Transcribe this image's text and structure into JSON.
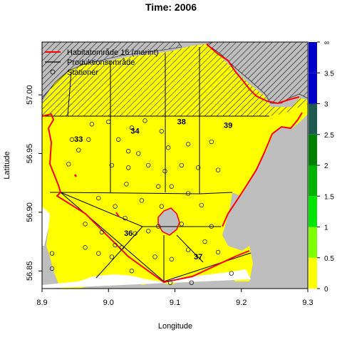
{
  "chart_data": {
    "type": "map",
    "title": "Time: 2006",
    "xlabel": "Longitude",
    "ylabel": "Latitude",
    "xlim": [
      8.9,
      9.3
    ],
    "ylim": [
      56.835,
      57.045
    ],
    "x_ticks": [
      "8.9",
      "9.0",
      "9.1",
      "9.2",
      "9.3"
    ],
    "y_ticks": [
      "56.85",
      "56.90",
      "56.95",
      "57.00"
    ],
    "legend": {
      "position": "top-left",
      "items": [
        {
          "label": "Habitatområde 16 (marint)",
          "color": "#ff0000",
          "kind": "line"
        },
        {
          "label": "Produktionsområde",
          "color": "#000000",
          "kind": "line"
        },
        {
          "label": "Stationer",
          "color": "#000000",
          "kind": "circle"
        }
      ]
    },
    "color_scale": {
      "ticks": [
        "0",
        "0.5",
        "1",
        "1.5",
        "2",
        "2.5",
        "3",
        "3.5",
        "∞"
      ],
      "colors": [
        "#ffff00",
        "#80ff00",
        "#00e600",
        "#00b300",
        "#008000",
        "#1e5a50",
        "#0000c8",
        "#0000c8"
      ]
    },
    "production_areas": [
      {
        "label": "33",
        "x": 8.955,
        "y": 56.96
      },
      {
        "label": "34",
        "x": 9.04,
        "y": 56.967
      },
      {
        "label": "38",
        "x": 9.11,
        "y": 56.975
      },
      {
        "label": "39",
        "x": 9.18,
        "y": 56.972
      },
      {
        "label": "36",
        "x": 9.03,
        "y": 56.88
      },
      {
        "label": "37",
        "x": 9.135,
        "y": 56.86
      }
    ],
    "stations": [
      [
        8.975,
        56.975
      ],
      [
        8.945,
        56.962
      ],
      [
        8.97,
        56.962
      ],
      [
        8.955,
        56.953
      ],
      [
        8.94,
        56.941
      ],
      [
        9.0,
        56.977
      ],
      [
        9.035,
        56.972
      ],
      [
        9.055,
        56.978
      ],
      [
        9.08,
        56.969
      ],
      [
        9.015,
        56.962
      ],
      [
        9.045,
        56.95
      ],
      [
        9.03,
        56.952
      ],
      [
        9.09,
        56.955
      ],
      [
        9.12,
        56.958
      ],
      [
        9.155,
        56.96
      ],
      [
        9.005,
        56.94
      ],
      [
        9.03,
        56.938
      ],
      [
        9.06,
        56.94
      ],
      [
        9.085,
        56.935
      ],
      [
        9.11,
        56.94
      ],
      [
        9.135,
        56.938
      ],
      [
        9.165,
        56.936
      ],
      [
        9.027,
        56.924
      ],
      [
        9.075,
        56.922
      ],
      [
        9.095,
        56.922
      ],
      [
        9.12,
        56.916
      ],
      [
        8.985,
        56.912
      ],
      [
        9.01,
        56.905
      ],
      [
        9.05,
        56.91
      ],
      [
        9.08,
        56.905
      ],
      [
        9.14,
        56.906
      ],
      [
        8.99,
        56.883
      ],
      [
        9.02,
        56.87
      ],
      [
        9.04,
        56.882
      ],
      [
        9.06,
        56.884
      ],
      [
        8.965,
        56.87
      ],
      [
        8.985,
        56.865
      ],
      [
        9.005,
        56.862
      ],
      [
        9.035,
        56.85
      ],
      [
        9.07,
        56.862
      ],
      [
        9.095,
        56.86
      ],
      [
        9.12,
        56.868
      ],
      [
        9.145,
        56.875
      ],
      [
        9.165,
        56.866
      ],
      [
        8.915,
        56.865
      ],
      [
        8.915,
        56.852
      ],
      [
        9.093,
        56.84
      ],
      [
        9.125,
        56.84
      ],
      [
        9.185,
        56.848
      ],
      [
        9.14,
        56.829
      ],
      [
        8.965,
        56.89
      ],
      [
        9.11,
        56.89
      ],
      [
        9.155,
        56.888
      ],
      [
        9.075,
        56.888
      ],
      [
        9.025,
        56.895
      ],
      [
        9.01,
        56.872
      ]
    ]
  }
}
